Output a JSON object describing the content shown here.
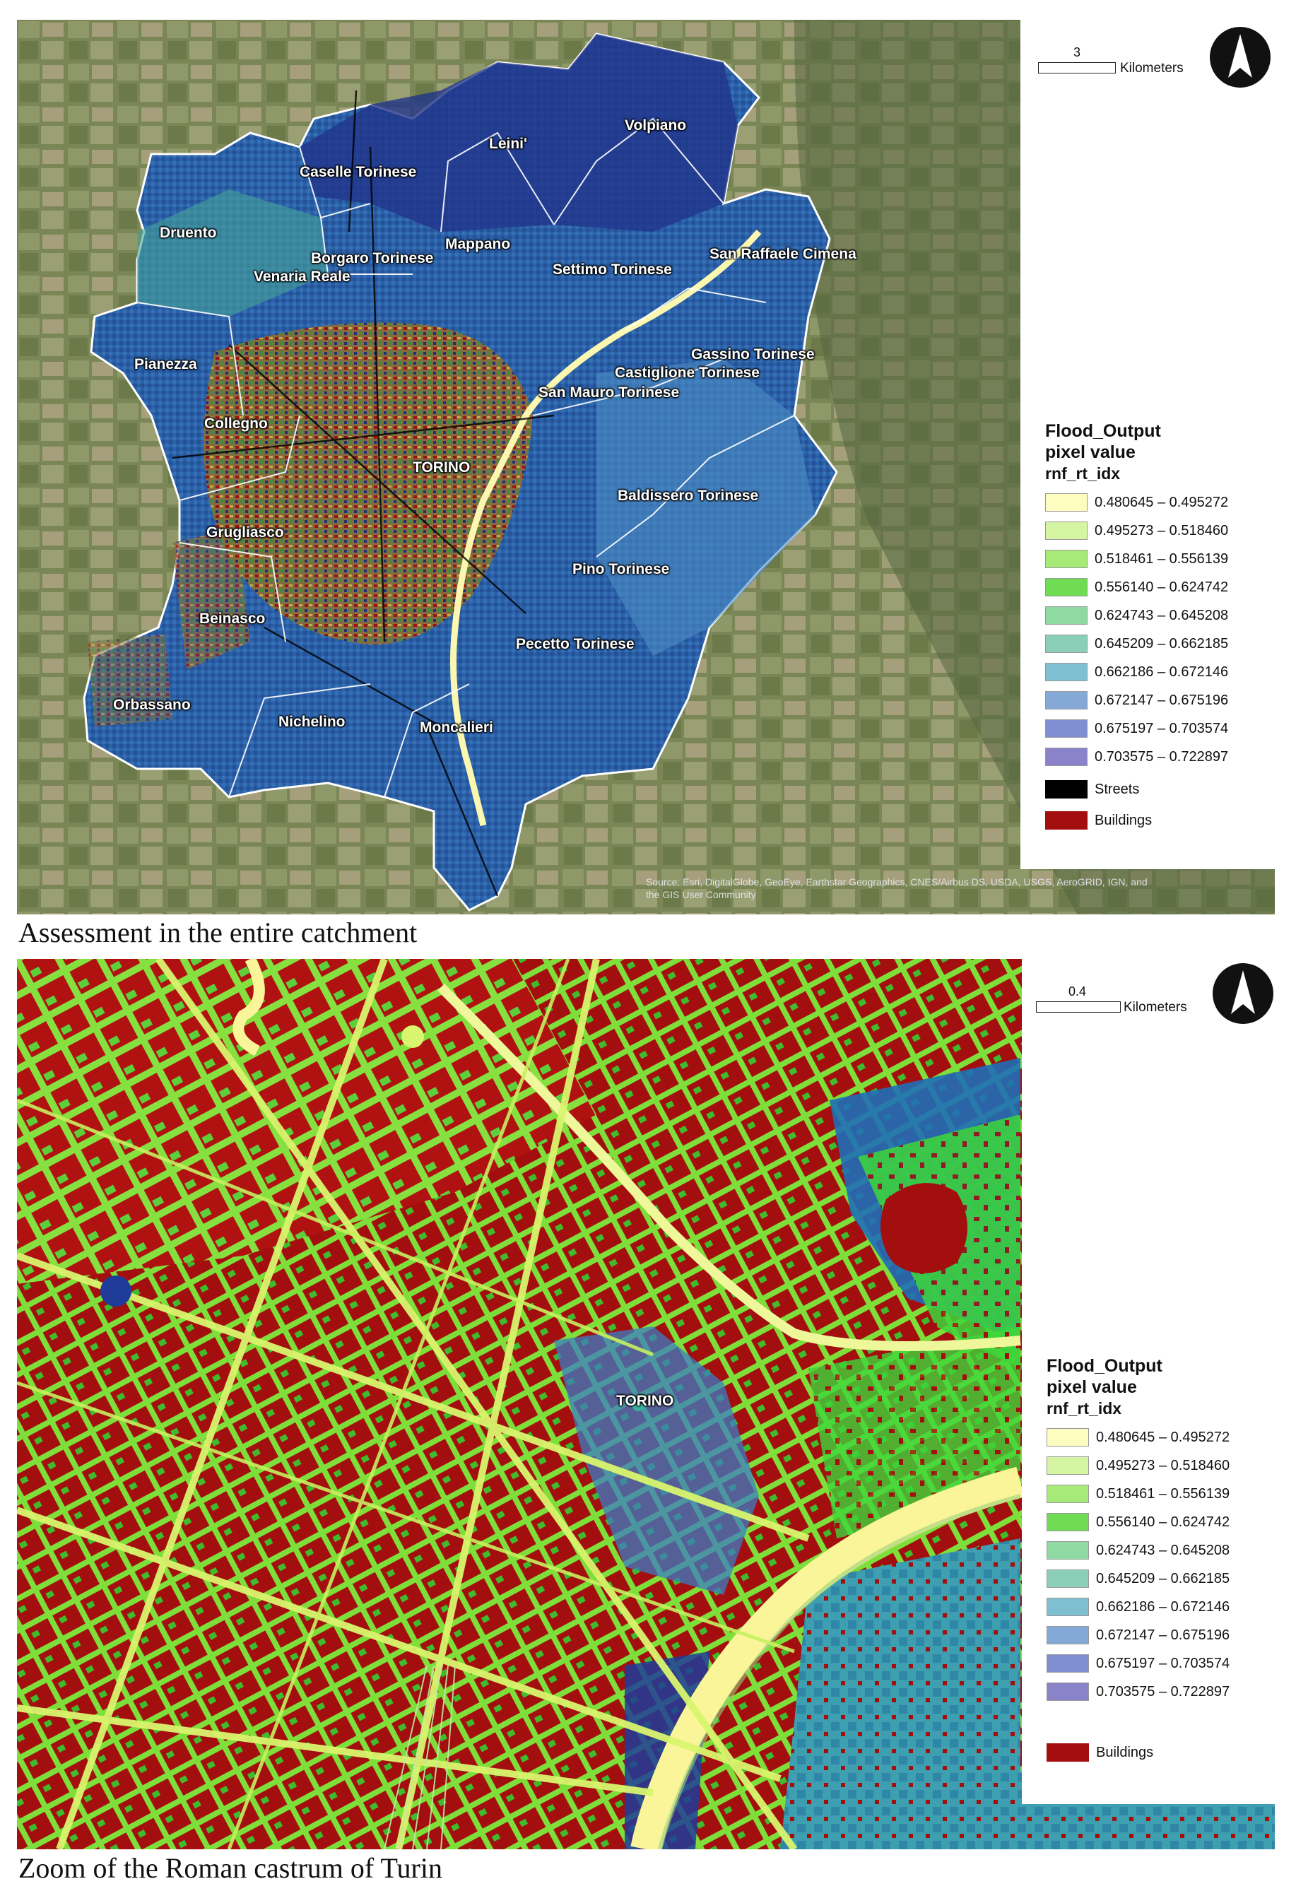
{
  "panels": [
    {
      "caption": "Assessment in the entire catchment",
      "scale": {
        "value": "3",
        "unit": "Kilometers"
      },
      "legend": {
        "title": [
          "Flood_Output",
          "pixel value",
          "rnf_rt_idx"
        ],
        "classes": [
          {
            "label": "0.480645 – 0.495272",
            "color": "#fdfdc0"
          },
          {
            "label": "0.495273 – 0.518460",
            "color": "#d6f5a3"
          },
          {
            "label": "0.518461 – 0.556139",
            "color": "#a8ea78"
          },
          {
            "label": "0.556140 – 0.624742",
            "color": "#6fdc54"
          },
          {
            "label": "0.624743 – 0.645208",
            "color": "#8fd9a3"
          },
          {
            "label": "0.645209 – 0.662185",
            "color": "#8ccfb8"
          },
          {
            "label": "0.662186 – 0.672146",
            "color": "#7fbfd2"
          },
          {
            "label": "0.672147 – 0.675196",
            "color": "#85a9d6"
          },
          {
            "label": "0.675197 – 0.703574",
            "color": "#7f8fd2"
          },
          {
            "label": "0.703575 – 0.722897",
            "color": "#8b83c9"
          }
        ],
        "extra": [
          {
            "label": "Streets",
            "color": "#000000"
          },
          {
            "label": "Buildings",
            "color": "#a30e0e"
          }
        ]
      },
      "towns": [
        "Volpiano",
        "Leini'",
        "Caselle Torinese",
        "Druento",
        "Borgaro Torinese",
        "Mappano",
        "Settimo Torinese",
        "San Raffaele Cimena",
        "Venaria Reale",
        "Pianezza",
        "Gassino Torinese",
        "Castiglione Torinese",
        "San Mauro Torinese",
        "Collegno",
        "TORINO",
        "Baldissero Torinese",
        "Grugliasco",
        "Pino Torinese",
        "Beinasco",
        "Pecetto Torinese",
        "Orbassano",
        "Nichelino",
        "Moncalieri"
      ],
      "attribution": [
        "Source: Esri, DigitalGlobe, GeoEye, Earthstar Geographics, CNES/Airbus DS, USDA, USGS, AeroGRID, IGN, and",
        "the GIS User Community"
      ]
    },
    {
      "caption": "Zoom of the Roman castrum of Turin",
      "scale": {
        "value": "0.4",
        "unit": "Kilometers"
      },
      "legend": {
        "title": [
          "Flood_Output",
          "pixel value",
          "rnf_rt_idx"
        ],
        "classes": [
          {
            "label": "0.480645 – 0.495272",
            "color": "#fdfdc0"
          },
          {
            "label": "0.495273 – 0.518460",
            "color": "#d6f5a3"
          },
          {
            "label": "0.518461 – 0.556139",
            "color": "#a8ea78"
          },
          {
            "label": "0.556140 – 0.624742",
            "color": "#6fdc54"
          },
          {
            "label": "0.624743 – 0.645208",
            "color": "#8fd9a3"
          },
          {
            "label": "0.645209 – 0.662185",
            "color": "#8ccfb8"
          },
          {
            "label": "0.662186 – 0.672146",
            "color": "#7fbfd2"
          },
          {
            "label": "0.672147 – 0.675196",
            "color": "#85a9d6"
          },
          {
            "label": "0.675197 – 0.703574",
            "color": "#7f8fd2"
          },
          {
            "label": "0.703575 – 0.722897",
            "color": "#8b83c9"
          }
        ],
        "extra": [
          {
            "label": "Buildings",
            "color": "#a30e0e"
          }
        ]
      },
      "towns": [
        "TORINO"
      ]
    }
  ]
}
